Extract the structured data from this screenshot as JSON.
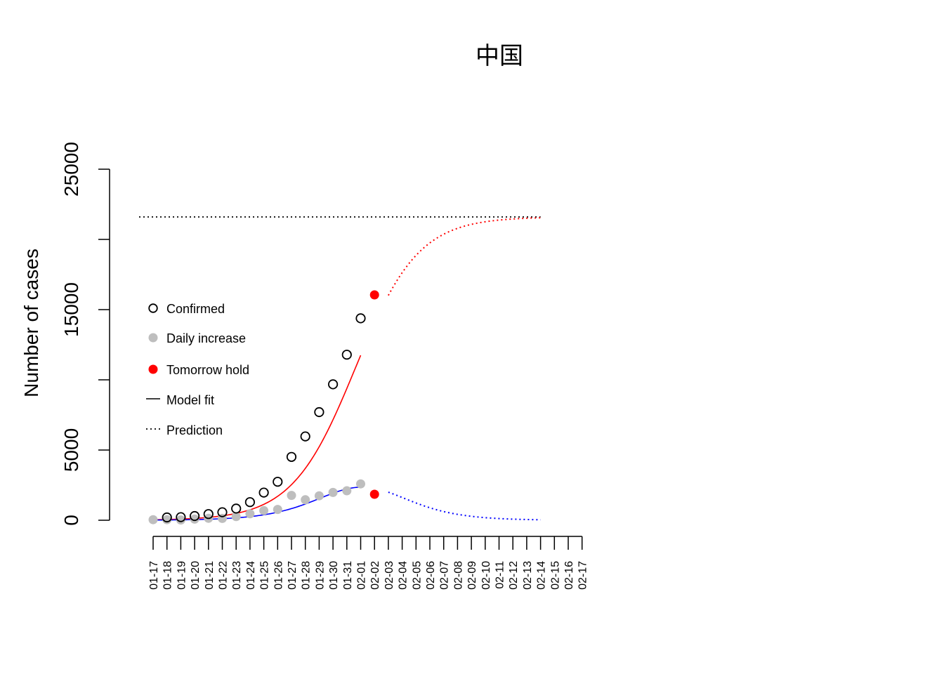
{
  "chart_data": {
    "type": "scatter",
    "title": "中国",
    "ylabel": "Number of cases",
    "xlabel": "",
    "ylim": [
      0,
      25000
    ],
    "y_ticks": [
      0,
      5000,
      10000,
      15000,
      20000,
      25000
    ],
    "y_tick_labels": [
      "0",
      "5000",
      "",
      "15000",
      "",
      "25000"
    ],
    "x_categories": [
      "01-17",
      "01-18",
      "01-19",
      "01-20",
      "01-21",
      "01-22",
      "01-23",
      "01-24",
      "01-25",
      "01-26",
      "01-27",
      "01-28",
      "01-29",
      "01-30",
      "01-31",
      "02-01",
      "02-02",
      "02-03",
      "02-04",
      "02-05",
      "02-06",
      "02-07",
      "02-08",
      "02-09",
      "02-10",
      "02-11",
      "02-12",
      "02-13",
      "02-14",
      "02-15",
      "02-16",
      "02-17"
    ],
    "plateau": 21600,
    "grid": false,
    "legend_position": "left",
    "series": [
      {
        "name": "Confirmed",
        "marker": "open-circle",
        "color": "#000000",
        "x": [
          "01-18",
          "01-19",
          "01-20",
          "01-21",
          "01-22",
          "01-23",
          "01-24",
          "01-25",
          "01-26",
          "01-27",
          "01-28",
          "01-29",
          "01-30",
          "01-31",
          "02-01"
        ],
        "values": [
          200,
          220,
          300,
          440,
          570,
          830,
          1290,
          1970,
          2740,
          4510,
          5970,
          7700,
          9680,
          11790,
          14380
        ]
      },
      {
        "name": "Daily increase",
        "marker": "filled-circle",
        "color": "#bebebe",
        "x": [
          "01-17",
          "01-18",
          "01-19",
          "01-20",
          "01-21",
          "01-22",
          "01-23",
          "01-24",
          "01-25",
          "01-26",
          "01-27",
          "01-28",
          "01-29",
          "01-30",
          "01-31",
          "02-01"
        ],
        "values": [
          40,
          40,
          20,
          80,
          140,
          130,
          260,
          460,
          690,
          770,
          1770,
          1460,
          1740,
          1980,
          2100,
          2590
        ]
      },
      {
        "name": "Tomorrow hold",
        "marker": "filled-circle",
        "color": "#ff0000",
        "x": [
          "02-02",
          "02-02"
        ],
        "values": [
          16050,
          1850
        ]
      },
      {
        "name": "Model fit",
        "line": "solid",
        "color": "#000000",
        "x_range": [
          "01-17",
          "02-01"
        ]
      },
      {
        "name": "Prediction",
        "line": "dotted",
        "color": "#000000",
        "x_range": [
          "02-03",
          "02-14"
        ]
      }
    ],
    "colors": {
      "cumulative_curve": "#ff0000",
      "daily_curve": "#0000ff",
      "plateau_line": "#000000"
    }
  }
}
